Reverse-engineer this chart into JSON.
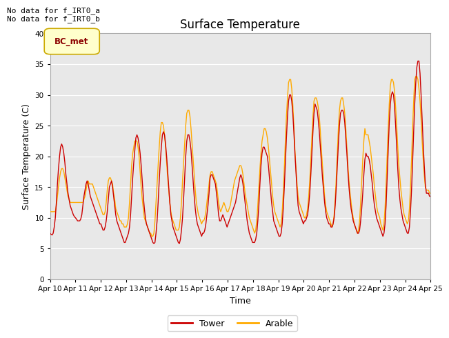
{
  "title": "Surface Temperature",
  "xlabel": "Time",
  "ylabel": "Surface Temperature (C)",
  "ylim": [
    0,
    40
  ],
  "yticks": [
    0,
    5,
    10,
    15,
    20,
    25,
    30,
    35,
    40
  ],
  "fig_bg_color": "#ffffff",
  "plot_bg_color": "#e8e8e8",
  "tower_color": "#cc0000",
  "arable_color": "#ffaa00",
  "annotation_text": "No data for f_IRT0_a\nNo data for f_IRT0_b",
  "legend_box_label": "BC_met",
  "legend_box_color": "#ffffcc",
  "legend_box_edge": "#ccaa00",
  "grid_color": "#ffffff",
  "x_tick_labels": [
    "Apr 10",
    "Apr 11",
    "Apr 12",
    "Apr 13",
    "Apr 14",
    "Apr 15",
    "Apr 16",
    "Apr 17",
    "Apr 18",
    "Apr 19",
    "Apr 20",
    "Apr 21",
    "Apr 22",
    "Apr 23",
    "Apr 24",
    "Apr 25"
  ],
  "tower_data": [
    7.5,
    7.3,
    7.2,
    7.5,
    8.5,
    10.0,
    12.5,
    15.5,
    18.0,
    20.0,
    21.5,
    22.0,
    21.5,
    20.5,
    19.0,
    17.0,
    15.5,
    14.0,
    13.0,
    12.0,
    11.5,
    11.0,
    10.5,
    10.2,
    10.0,
    9.8,
    9.5,
    9.5,
    9.5,
    9.8,
    10.5,
    12.0,
    13.5,
    14.5,
    15.5,
    16.0,
    15.5,
    14.5,
    13.5,
    13.0,
    12.5,
    12.0,
    11.5,
    11.0,
    10.5,
    10.0,
    9.5,
    9.0,
    9.0,
    8.5,
    8.0,
    8.0,
    8.5,
    9.5,
    11.0,
    13.0,
    15.0,
    15.5,
    16.0,
    15.0,
    13.5,
    12.0,
    10.5,
    9.5,
    9.0,
    8.5,
    8.0,
    7.5,
    7.0,
    6.5,
    6.0,
    6.0,
    6.5,
    7.0,
    7.5,
    8.5,
    10.5,
    13.5,
    16.5,
    19.0,
    21.0,
    23.0,
    23.5,
    23.0,
    22.0,
    20.5,
    18.5,
    16.0,
    13.5,
    11.5,
    10.0,
    9.0,
    8.5,
    8.0,
    7.5,
    7.0,
    6.5,
    6.0,
    5.8,
    6.0,
    7.5,
    9.5,
    12.5,
    16.0,
    19.0,
    21.5,
    23.5,
    24.0,
    23.5,
    22.0,
    20.0,
    17.5,
    15.0,
    12.5,
    10.5,
    9.5,
    8.5,
    8.0,
    7.5,
    7.0,
    6.5,
    6.0,
    5.8,
    6.5,
    8.0,
    10.0,
    13.0,
    16.5,
    20.0,
    22.5,
    23.5,
    23.5,
    22.5,
    21.0,
    18.5,
    16.0,
    13.5,
    11.5,
    10.0,
    9.0,
    8.5,
    8.0,
    7.5,
    7.0,
    7.5,
    7.5,
    8.0,
    9.0,
    10.5,
    12.0,
    14.0,
    16.5,
    17.0,
    17.0,
    16.5,
    16.0,
    15.5,
    14.0,
    12.5,
    10.5,
    9.5,
    9.5,
    10.0,
    10.5,
    10.0,
    9.5,
    9.0,
    8.5,
    9.0,
    9.5,
    10.0,
    10.5,
    11.0,
    11.5,
    12.0,
    12.5,
    13.5,
    14.5,
    15.5,
    16.5,
    17.0,
    16.5,
    15.5,
    14.0,
    12.5,
    11.0,
    9.5,
    8.5,
    7.5,
    7.0,
    6.5,
    6.0,
    6.0,
    6.0,
    6.5,
    7.5,
    9.5,
    12.0,
    15.5,
    18.5,
    20.5,
    21.5,
    21.5,
    21.0,
    20.5,
    20.0,
    18.5,
    16.5,
    14.5,
    12.5,
    11.0,
    9.5,
    9.0,
    8.5,
    8.0,
    7.5,
    7.0,
    7.0,
    7.5,
    9.0,
    11.5,
    15.0,
    19.0,
    23.0,
    26.5,
    29.0,
    30.0,
    30.0,
    29.0,
    27.0,
    24.0,
    20.5,
    17.5,
    14.5,
    12.0,
    11.0,
    10.5,
    10.0,
    9.5,
    9.0,
    9.5,
    9.5,
    10.0,
    10.5,
    12.0,
    14.0,
    17.0,
    20.5,
    24.0,
    27.0,
    28.5,
    28.0,
    27.5,
    26.0,
    24.0,
    21.5,
    19.0,
    16.5,
    14.5,
    12.5,
    11.0,
    10.0,
    9.5,
    9.0,
    9.0,
    8.5,
    8.5,
    9.0,
    10.0,
    12.0,
    15.0,
    18.5,
    22.0,
    25.0,
    27.0,
    27.5,
    27.5,
    27.0,
    25.5,
    23.0,
    20.5,
    17.5,
    15.0,
    13.0,
    11.5,
    10.5,
    9.5,
    9.0,
    8.5,
    8.0,
    7.5,
    7.5,
    8.0,
    9.5,
    11.5,
    14.0,
    17.0,
    19.5,
    20.5,
    20.0,
    20.0,
    19.5,
    18.5,
    17.0,
    15.5,
    13.5,
    12.0,
    11.0,
    10.0,
    9.5,
    9.0,
    8.5,
    8.0,
    7.5,
    7.0,
    7.5,
    9.0,
    12.0,
    16.5,
    21.0,
    25.5,
    28.5,
    30.0,
    30.5,
    30.0,
    28.0,
    25.0,
    21.5,
    18.0,
    15.0,
    13.0,
    11.5,
    10.5,
    9.5,
    9.0,
    8.5,
    8.0,
    7.5,
    7.5,
    8.5,
    11.0,
    14.5,
    19.0,
    24.0,
    28.5,
    32.0,
    34.5,
    35.5,
    35.5,
    33.5,
    30.0,
    26.0,
    22.0,
    18.5,
    15.5,
    14.0,
    14.0,
    14.0,
    13.5,
    13.5
  ],
  "arable_data": [
    11.0,
    11.0,
    11.0,
    11.0,
    11.0,
    11.0,
    12.0,
    13.5,
    15.0,
    16.5,
    17.5,
    18.0,
    18.0,
    17.5,
    16.5,
    15.5,
    14.5,
    13.5,
    13.0,
    12.5,
    12.5,
    12.5,
    12.5,
    12.5,
    12.5,
    12.5,
    12.5,
    12.5,
    12.5,
    12.5,
    12.5,
    12.5,
    13.0,
    13.5,
    14.5,
    15.5,
    16.0,
    15.5,
    15.5,
    15.5,
    15.5,
    15.0,
    14.5,
    14.0,
    13.5,
    13.0,
    12.5,
    12.0,
    11.5,
    11.0,
    10.5,
    10.5,
    11.0,
    12.5,
    14.5,
    16.0,
    16.5,
    16.5,
    16.0,
    15.5,
    14.0,
    13.0,
    11.5,
    11.0,
    10.5,
    10.0,
    9.5,
    9.5,
    9.0,
    9.0,
    8.5,
    8.5,
    8.5,
    9.0,
    10.0,
    12.5,
    15.5,
    18.5,
    20.5,
    21.5,
    22.5,
    22.5,
    22.5,
    21.5,
    20.0,
    17.5,
    15.0,
    13.0,
    11.5,
    10.0,
    9.5,
    9.0,
    8.5,
    8.0,
    7.5,
    7.5,
    7.0,
    7.0,
    7.5,
    9.5,
    12.5,
    15.5,
    18.5,
    21.5,
    24.0,
    25.5,
    25.5,
    25.0,
    23.5,
    21.5,
    19.0,
    16.5,
    14.5,
    12.5,
    11.0,
    10.0,
    9.5,
    9.0,
    8.5,
    8.0,
    8.0,
    8.0,
    8.5,
    10.0,
    12.5,
    16.0,
    19.0,
    22.0,
    25.0,
    27.0,
    27.5,
    27.5,
    26.5,
    24.5,
    22.0,
    19.5,
    17.0,
    14.5,
    12.5,
    11.5,
    10.5,
    10.0,
    9.5,
    9.0,
    9.5,
    9.5,
    10.0,
    11.0,
    12.5,
    14.0,
    15.5,
    17.0,
    17.5,
    17.5,
    17.0,
    16.5,
    16.0,
    15.5,
    14.0,
    12.5,
    11.5,
    11.0,
    11.5,
    12.0,
    12.5,
    12.0,
    11.5,
    11.0,
    11.0,
    11.5,
    12.0,
    13.0,
    14.0,
    15.0,
    16.0,
    16.5,
    17.0,
    17.5,
    18.0,
    18.5,
    18.5,
    18.0,
    17.0,
    15.5,
    14.0,
    13.0,
    12.0,
    11.0,
    10.0,
    9.5,
    9.0,
    8.5,
    8.0,
    7.5,
    8.0,
    9.5,
    12.0,
    15.0,
    18.0,
    20.5,
    22.5,
    23.5,
    24.5,
    24.5,
    24.0,
    23.0,
    21.5,
    19.5,
    17.5,
    15.5,
    13.5,
    12.0,
    11.0,
    10.5,
    10.0,
    9.5,
    9.0,
    8.5,
    9.0,
    11.0,
    14.0,
    18.0,
    22.5,
    26.5,
    29.5,
    32.0,
    32.5,
    32.5,
    31.0,
    28.5,
    25.0,
    21.0,
    18.0,
    15.5,
    13.5,
    12.5,
    12.0,
    11.5,
    11.0,
    10.5,
    10.0,
    10.0,
    10.5,
    11.5,
    13.5,
    16.0,
    19.5,
    23.0,
    26.5,
    29.0,
    29.5,
    29.5,
    29.0,
    28.0,
    26.5,
    24.0,
    21.0,
    18.5,
    16.0,
    13.5,
    12.0,
    11.0,
    10.5,
    10.0,
    9.5,
    9.0,
    8.5,
    9.0,
    10.5,
    13.0,
    16.5,
    20.5,
    24.5,
    27.5,
    29.0,
    29.5,
    29.5,
    28.5,
    27.0,
    24.5,
    21.5,
    18.5,
    16.0,
    14.0,
    12.5,
    11.0,
    10.0,
    9.0,
    8.5,
    8.0,
    7.5,
    8.0,
    9.5,
    12.5,
    16.0,
    19.5,
    22.5,
    24.5,
    23.5,
    23.5,
    23.5,
    22.5,
    21.5,
    20.0,
    18.5,
    17.0,
    15.0,
    13.5,
    12.0,
    11.0,
    10.5,
    10.0,
    9.0,
    8.5,
    8.0,
    9.0,
    11.5,
    15.5,
    20.0,
    24.5,
    28.5,
    31.5,
    32.5,
    32.5,
    32.0,
    30.5,
    28.0,
    25.0,
    21.5,
    18.5,
    16.5,
    14.5,
    13.0,
    11.5,
    10.5,
    10.0,
    9.5,
    9.0,
    9.5,
    11.5,
    15.0,
    19.5,
    24.5,
    29.0,
    32.5,
    33.0,
    33.0,
    32.5,
    31.0,
    29.0,
    26.0,
    22.5,
    19.5,
    17.0,
    15.0,
    14.5,
    14.5,
    14.5,
    14.0,
    14.0
  ]
}
